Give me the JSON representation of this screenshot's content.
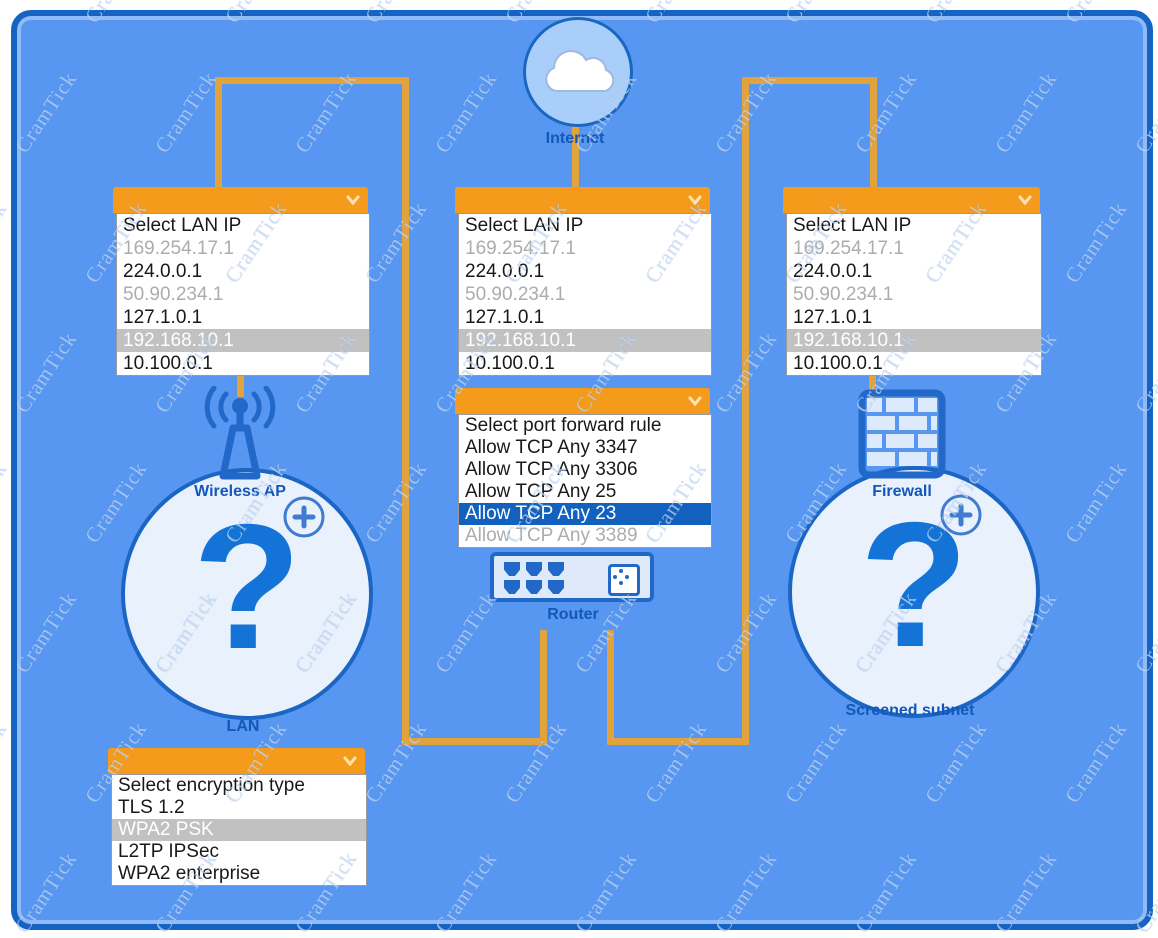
{
  "watermark": {
    "text": "CramTick"
  },
  "colors": {
    "background": "#5797F1",
    "border": "#1563C2",
    "connector": "#E2A23C",
    "header": "#F59B1B",
    "selected_gray": "#C1C1C1",
    "selected_blue": "#1261BE",
    "disabled_text": "#ACACAC",
    "label": "#1358B8",
    "icon": "#2268C8"
  },
  "nodes": {
    "internet": {
      "label": "Internet"
    },
    "wireless_ap": {
      "label": "Wireless AP"
    },
    "lan": {
      "label": "LAN"
    },
    "router": {
      "label": "Router"
    },
    "firewall": {
      "label": "Firewall"
    },
    "screened_subnet": {
      "label": "Screened subnet"
    }
  },
  "dropdowns": {
    "ap_lan_ip": {
      "items": [
        {
          "text": "Select LAN IP",
          "state": "normal"
        },
        {
          "text": "169.254.17.1",
          "state": "disabled"
        },
        {
          "text": "224.0.0.1",
          "state": "normal"
        },
        {
          "text": "50.90.234.1",
          "state": "disabled"
        },
        {
          "text": "127.1.0.1",
          "state": "normal"
        },
        {
          "text": "192.168.10.1",
          "state": "selected-gray"
        },
        {
          "text": "10.100.0.1",
          "state": "normal"
        }
      ]
    },
    "router_lan_ip": {
      "items": [
        {
          "text": "Select LAN IP",
          "state": "normal"
        },
        {
          "text": "169.254.17.1",
          "state": "disabled"
        },
        {
          "text": "224.0.0.1",
          "state": "normal"
        },
        {
          "text": "50.90.234.1",
          "state": "disabled"
        },
        {
          "text": "127.1.0.1",
          "state": "normal"
        },
        {
          "text": "192.168.10.1",
          "state": "selected-gray"
        },
        {
          "text": "10.100.0.1",
          "state": "normal"
        }
      ]
    },
    "firewall_lan_ip": {
      "items": [
        {
          "text": "Select LAN IP",
          "state": "normal"
        },
        {
          "text": "169.254.17.1",
          "state": "disabled"
        },
        {
          "text": "224.0.0.1",
          "state": "normal"
        },
        {
          "text": "50.90.234.1",
          "state": "disabled"
        },
        {
          "text": "127.1.0.1",
          "state": "normal"
        },
        {
          "text": "192.168.10.1",
          "state": "selected-gray"
        },
        {
          "text": "10.100.0.1",
          "state": "normal"
        }
      ]
    },
    "port_forward": {
      "items": [
        {
          "text": "Select port forward rule",
          "state": "normal"
        },
        {
          "text": "Allow TCP Any 3347",
          "state": "normal"
        },
        {
          "text": "Allow TCP Any 3306",
          "state": "normal"
        },
        {
          "text": "Allow TCP Any 25",
          "state": "normal"
        },
        {
          "text": "Allow TCP Any 23",
          "state": "selected-blue"
        },
        {
          "text": "Allow TCP Any 3389",
          "state": "disabled"
        }
      ]
    },
    "encryption": {
      "items": [
        {
          "text": "Select encryption type",
          "state": "normal"
        },
        {
          "text": "TLS 1.2",
          "state": "normal"
        },
        {
          "text": "WPA2 PSK",
          "state": "selected-gray"
        },
        {
          "text": "L2TP IPSec",
          "state": "normal"
        },
        {
          "text": "WPA2 enterprise",
          "state": "normal"
        }
      ]
    }
  }
}
